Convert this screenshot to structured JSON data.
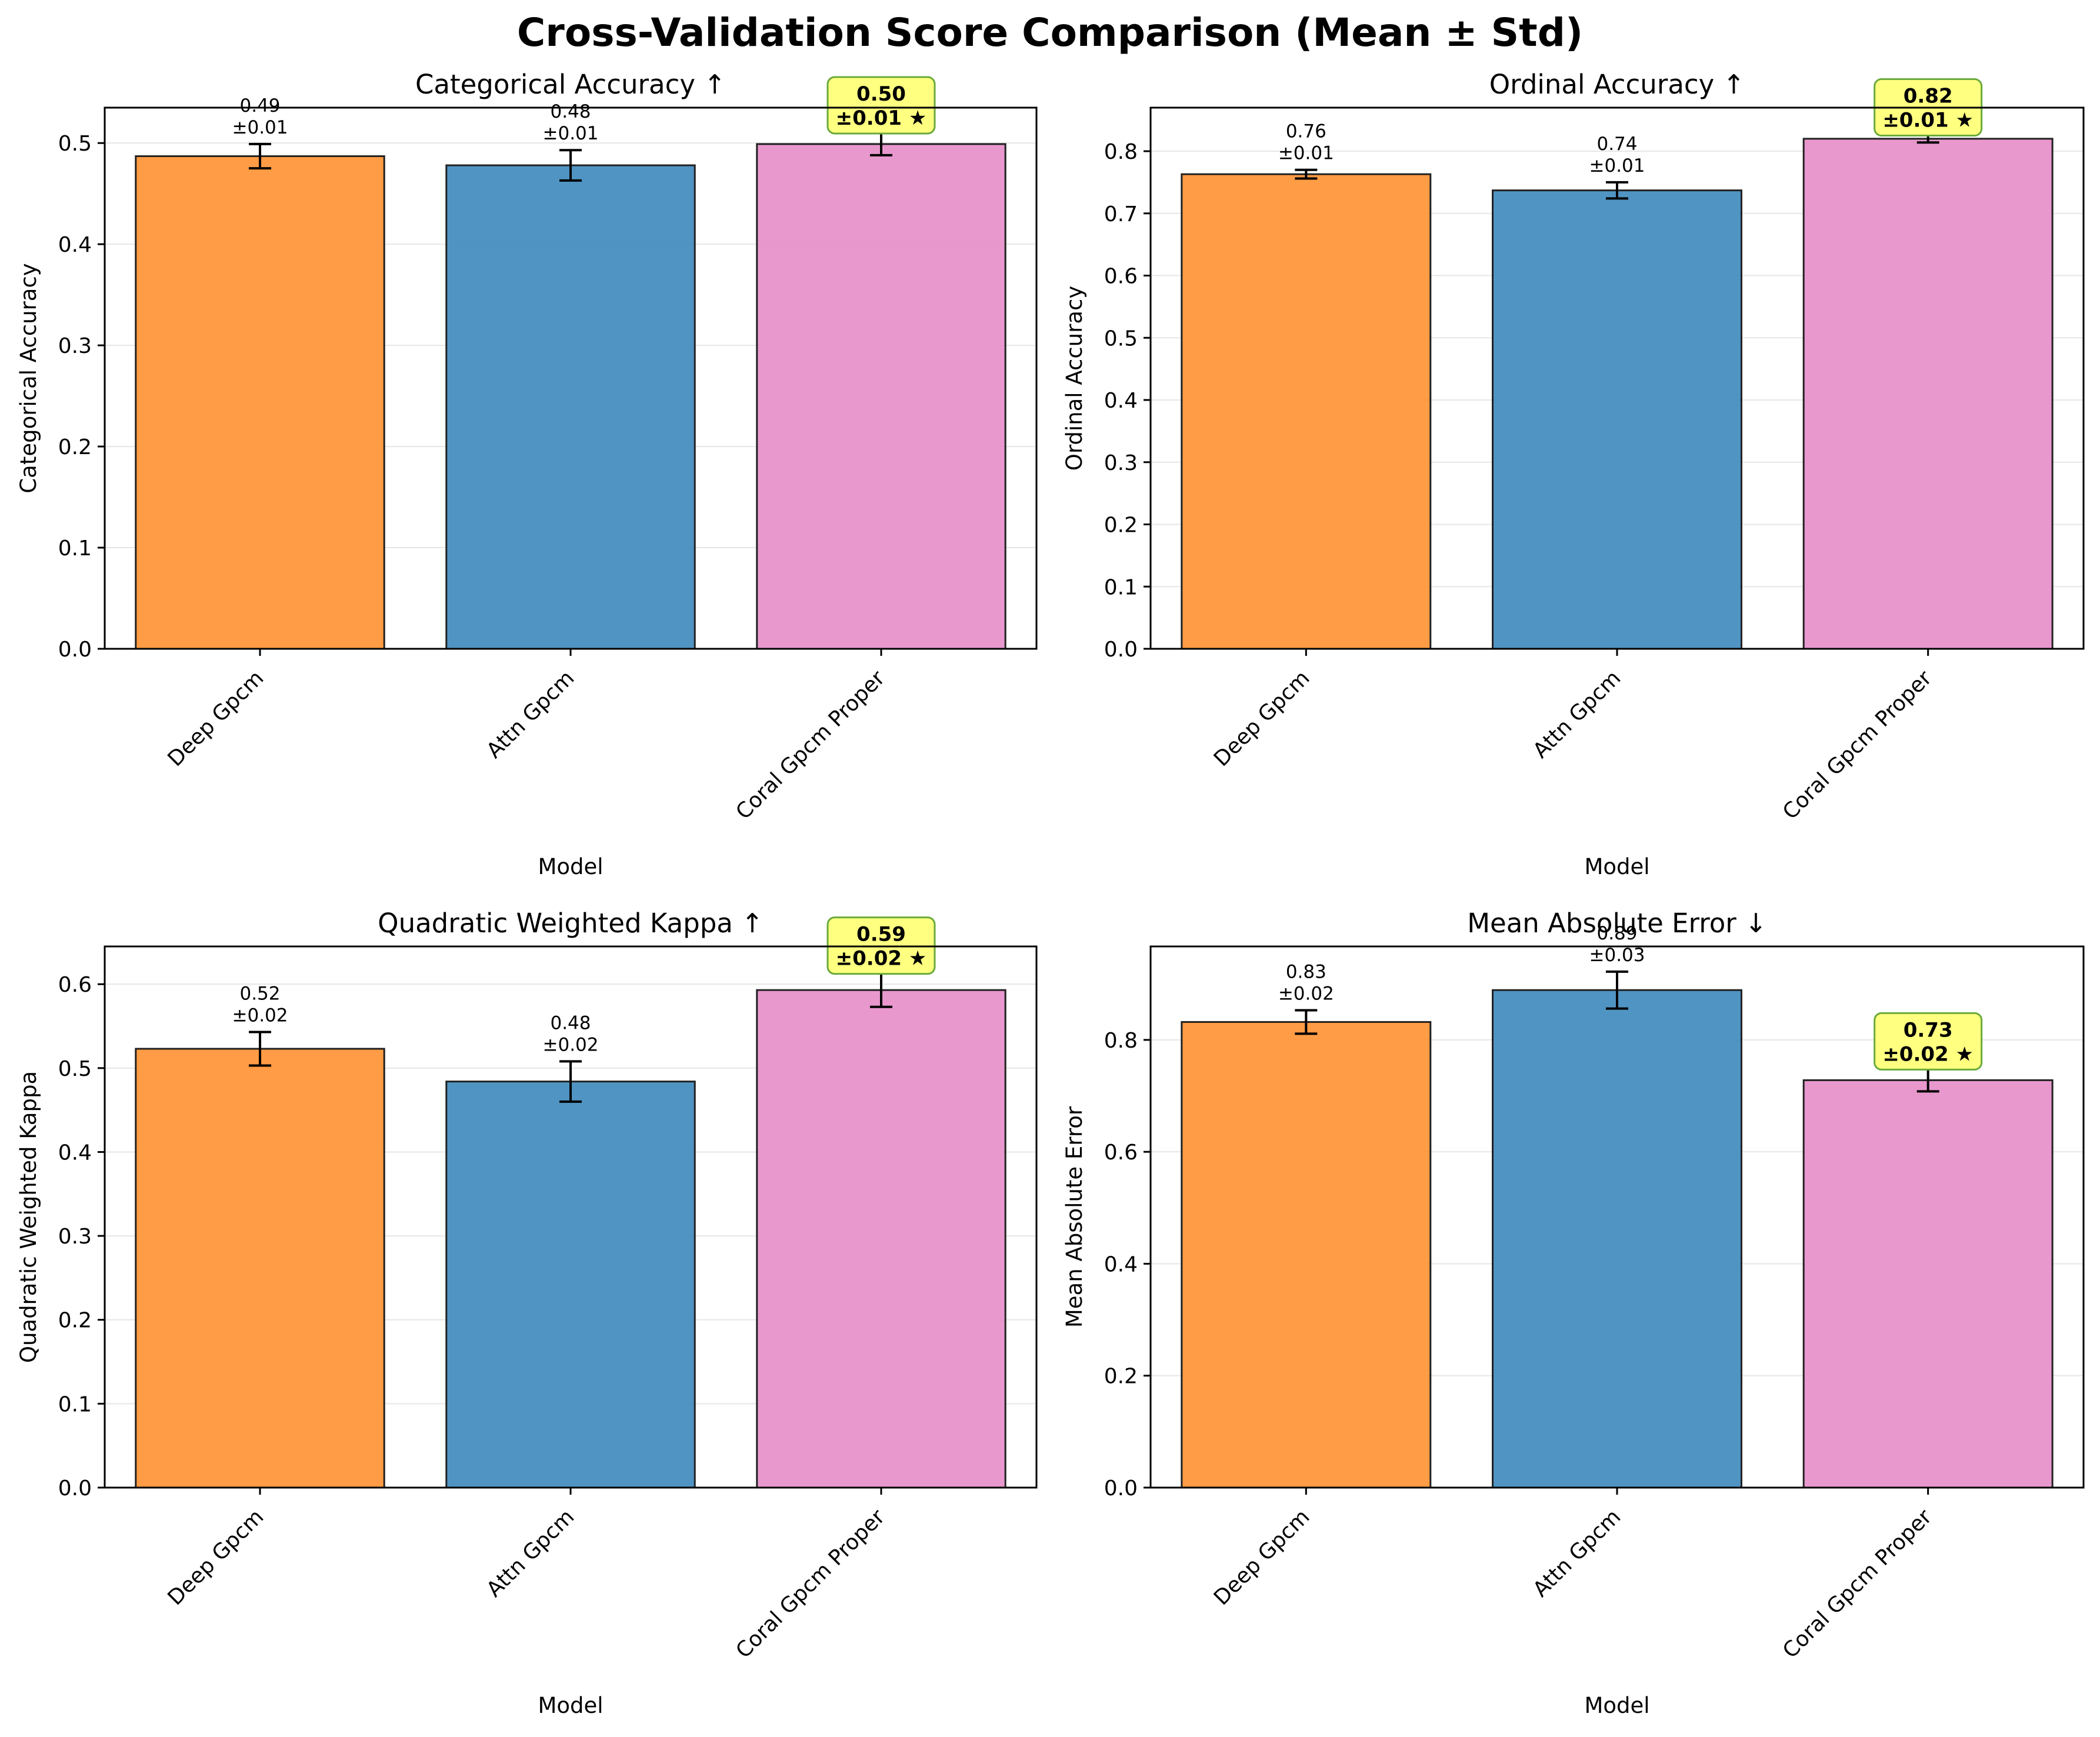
{
  "figure": {
    "title": "Cross-Validation Score Comparison (Mean ± Std)"
  },
  "colors": {
    "deep_gpcm": "#ff993f",
    "attn_gpcm": "#4b91c2",
    "coral_gpcm_proper": "#e895cc",
    "highlight_box": "#ffff80",
    "highlight_border": "#6aaa3a",
    "grid": "#e6e6e6"
  },
  "chart_data": [
    {
      "type": "bar",
      "title": "Categorical Accuracy ↑",
      "xlabel": "Model",
      "ylabel": "Categorical Accuracy",
      "categories": [
        "Deep Gpcm",
        "Attn Gpcm",
        "Coral Gpcm Proper"
      ],
      "values": [
        0.487,
        0.478,
        0.499
      ],
      "errors": [
        0.012,
        0.015,
        0.011
      ],
      "value_labels": [
        "0.49",
        "0.48",
        "0.50"
      ],
      "error_labels": [
        "±0.01",
        "±0.01",
        "±0.01 ★"
      ],
      "best_index": 2,
      "ylim": [
        0,
        0.535
      ],
      "yticks": [
        0.0,
        0.1,
        0.2,
        0.3,
        0.4,
        0.5
      ],
      "ytick_labels": [
        "0.0",
        "0.1",
        "0.2",
        "0.3",
        "0.4",
        "0.5"
      ],
      "grid": true
    },
    {
      "type": "bar",
      "title": "Ordinal Accuracy ↑",
      "xlabel": "Model",
      "ylabel": "Ordinal Accuracy",
      "categories": [
        "Deep Gpcm",
        "Attn Gpcm",
        "Coral Gpcm Proper"
      ],
      "values": [
        0.763,
        0.737,
        0.82
      ],
      "errors": [
        0.007,
        0.013,
        0.006
      ],
      "value_labels": [
        "0.76",
        "0.74",
        "0.82"
      ],
      "error_labels": [
        "±0.01",
        "±0.01",
        "±0.01 ★"
      ],
      "best_index": 2,
      "ylim": [
        0,
        0.87
      ],
      "yticks": [
        0.0,
        0.1,
        0.2,
        0.3,
        0.4,
        0.5,
        0.6,
        0.7,
        0.8
      ],
      "ytick_labels": [
        "0.0",
        "0.1",
        "0.2",
        "0.3",
        "0.4",
        "0.5",
        "0.6",
        "0.7",
        "0.8"
      ],
      "grid": true
    },
    {
      "type": "bar",
      "title": "Quadratic Weighted Kappa ↑",
      "xlabel": "Model",
      "ylabel": "Quadratic Weighted Kappa",
      "categories": [
        "Deep Gpcm",
        "Attn Gpcm",
        "Coral Gpcm Proper"
      ],
      "values": [
        0.523,
        0.484,
        0.593
      ],
      "errors": [
        0.02,
        0.024,
        0.02
      ],
      "value_labels": [
        "0.52",
        "0.48",
        "0.59"
      ],
      "error_labels": [
        "±0.02",
        "±0.02",
        "±0.02 ★"
      ],
      "best_index": 2,
      "ylim": [
        0,
        0.645
      ],
      "yticks": [
        0.0,
        0.1,
        0.2,
        0.3,
        0.4,
        0.5,
        0.6
      ],
      "ytick_labels": [
        "0.0",
        "0.1",
        "0.2",
        "0.3",
        "0.4",
        "0.5",
        "0.6"
      ],
      "grid": true
    },
    {
      "type": "bar",
      "title": "Mean Absolute Error ↓",
      "xlabel": "Model",
      "ylabel": "Mean Absolute Error",
      "categories": [
        "Deep Gpcm",
        "Attn Gpcm",
        "Coral Gpcm Proper"
      ],
      "values": [
        0.832,
        0.889,
        0.728
      ],
      "errors": [
        0.021,
        0.033,
        0.02
      ],
      "value_labels": [
        "0.83",
        "0.89",
        "0.73"
      ],
      "error_labels": [
        "±0.02",
        "±0.03",
        "±0.02 ★"
      ],
      "best_index": 2,
      "ylim": [
        0,
        0.967
      ],
      "yticks": [
        0.0,
        0.2,
        0.4,
        0.6,
        0.8
      ],
      "ytick_labels": [
        "0.0",
        "0.2",
        "0.4",
        "0.6",
        "0.8"
      ],
      "grid": true
    }
  ]
}
